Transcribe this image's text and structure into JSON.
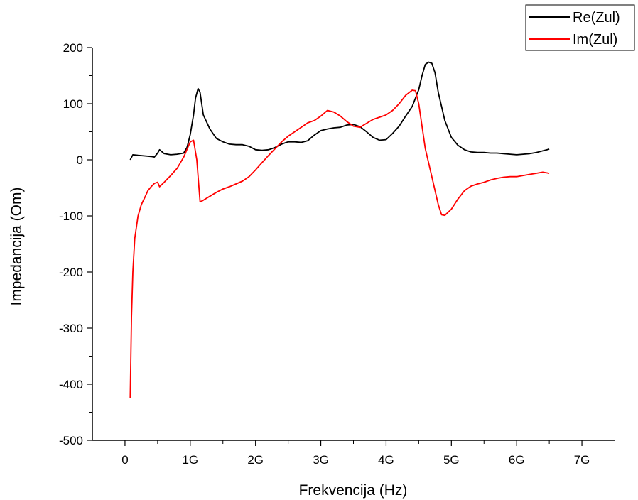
{
  "chart_data": {
    "type": "line",
    "xlabel": "Frekvencija (Hz)",
    "ylabel": "Impedancija (Om)",
    "xlim": [
      -0.5,
      7.5
    ],
    "ylim": [
      -500,
      200
    ],
    "x_ticks": [
      {
        "value": 0,
        "label": "0"
      },
      {
        "value": 1,
        "label": "1G"
      },
      {
        "value": 2,
        "label": "2G"
      },
      {
        "value": 3,
        "label": "3G"
      },
      {
        "value": 4,
        "label": "4G"
      },
      {
        "value": 5,
        "label": "5G"
      },
      {
        "value": 6,
        "label": "6G"
      },
      {
        "value": 7,
        "label": "7G"
      }
    ],
    "y_ticks": [
      {
        "value": 200,
        "label": "200"
      },
      {
        "value": 100,
        "label": "100"
      },
      {
        "value": 0,
        "label": "0"
      },
      {
        "value": -100,
        "label": "-100"
      },
      {
        "value": -200,
        "label": "-200"
      },
      {
        "value": -300,
        "label": "-300"
      },
      {
        "value": -400,
        "label": "-400"
      },
      {
        "value": -500,
        "label": "-500"
      }
    ],
    "legend_position": "top-right",
    "series": [
      {
        "name": "Re(Zul)",
        "color": "#000000",
        "x": [
          0.08,
          0.12,
          0.2,
          0.3,
          0.4,
          0.45,
          0.5,
          0.53,
          0.6,
          0.7,
          0.8,
          0.9,
          0.95,
          1.0,
          1.05,
          1.08,
          1.12,
          1.15,
          1.2,
          1.3,
          1.4,
          1.5,
          1.6,
          1.7,
          1.8,
          1.9,
          2.0,
          2.1,
          2.2,
          2.3,
          2.4,
          2.5,
          2.6,
          2.7,
          2.8,
          2.9,
          3.0,
          3.1,
          3.2,
          3.3,
          3.4,
          3.5,
          3.6,
          3.7,
          3.8,
          3.9,
          4.0,
          4.1,
          4.2,
          4.3,
          4.4,
          4.5,
          4.55,
          4.6,
          4.65,
          4.7,
          4.75,
          4.8,
          4.9,
          5.0,
          5.1,
          5.2,
          5.3,
          5.4,
          5.5,
          5.6,
          5.7,
          5.8,
          5.9,
          6.0,
          6.1,
          6.2,
          6.3,
          6.4,
          6.5
        ],
        "values": [
          0,
          9,
          8,
          7,
          6,
          5,
          12,
          18,
          11,
          9,
          10,
          12,
          22,
          45,
          80,
          110,
          127,
          120,
          80,
          55,
          38,
          32,
          28,
          27,
          27,
          24,
          18,
          17,
          18,
          22,
          28,
          32,
          32,
          31,
          34,
          44,
          52,
          55,
          57,
          58,
          62,
          63,
          59,
          50,
          40,
          35,
          36,
          47,
          60,
          78,
          95,
          125,
          150,
          170,
          174,
          172,
          155,
          120,
          70,
          40,
          26,
          18,
          14,
          13,
          13,
          12,
          12,
          11,
          10,
          9,
          10,
          11,
          13,
          16,
          19
        ]
      },
      {
        "name": "Im(Zul)",
        "color": "#ff0000",
        "x": [
          0.08,
          0.1,
          0.12,
          0.15,
          0.2,
          0.25,
          0.3,
          0.35,
          0.4,
          0.45,
          0.5,
          0.53,
          0.6,
          0.7,
          0.8,
          0.9,
          1.0,
          1.05,
          1.1,
          1.15,
          1.2,
          1.3,
          1.4,
          1.5,
          1.6,
          1.7,
          1.8,
          1.9,
          2.0,
          2.1,
          2.2,
          2.3,
          2.4,
          2.5,
          2.6,
          2.7,
          2.8,
          2.9,
          3.0,
          3.1,
          3.2,
          3.3,
          3.4,
          3.5,
          3.6,
          3.7,
          3.8,
          3.9,
          4.0,
          4.1,
          4.2,
          4.3,
          4.4,
          4.45,
          4.5,
          4.55,
          4.6,
          4.7,
          4.8,
          4.85,
          4.9,
          5.0,
          5.1,
          5.2,
          5.3,
          5.4,
          5.5,
          5.6,
          5.7,
          5.8,
          5.9,
          6.0,
          6.1,
          6.2,
          6.3,
          6.4,
          6.5
        ],
        "values": [
          -425,
          -280,
          -200,
          -140,
          -100,
          -80,
          -68,
          -55,
          -48,
          -42,
          -40,
          -48,
          -40,
          -28,
          -15,
          5,
          32,
          35,
          0,
          -75,
          -72,
          -65,
          -58,
          -52,
          -48,
          -43,
          -38,
          -30,
          -18,
          -5,
          8,
          20,
          32,
          42,
          50,
          58,
          66,
          70,
          78,
          88,
          85,
          78,
          68,
          60,
          58,
          65,
          72,
          76,
          80,
          88,
          100,
          115,
          124,
          123,
          100,
          60,
          20,
          -30,
          -80,
          -98,
          -99,
          -88,
          -70,
          -55,
          -47,
          -43,
          -40,
          -36,
          -33,
          -31,
          -30,
          -30,
          -28,
          -26,
          -24,
          -22,
          -24
        ]
      }
    ]
  }
}
